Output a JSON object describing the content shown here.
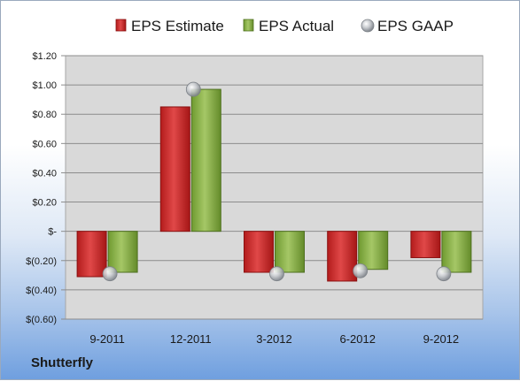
{
  "footer": {
    "company": "Shutterfly"
  },
  "chart_data": {
    "type": "bar",
    "title": "",
    "xlabel": "",
    "ylabel": "",
    "categories": [
      "9-2011",
      "12-2011",
      "3-2012",
      "6-2012",
      "9-2012"
    ],
    "series": [
      {
        "name": "EPS Estimate",
        "kind": "bar",
        "color": "#cc2a2a",
        "values": [
          -0.31,
          0.85,
          -0.28,
          -0.34,
          -0.18
        ]
      },
      {
        "name": "EPS Actual",
        "kind": "bar",
        "color": "#8cb04a",
        "values": [
          -0.28,
          0.97,
          -0.28,
          -0.26,
          -0.28
        ]
      },
      {
        "name": "EPS GAAP",
        "kind": "marker",
        "color": "#b9bcc0",
        "values": [
          -0.29,
          0.97,
          -0.29,
          -0.27,
          -0.29
        ]
      }
    ],
    "ylim": [
      -0.6,
      1.2
    ],
    "yticks": [
      -0.6,
      -0.4,
      -0.2,
      0,
      0.2,
      0.4,
      0.6,
      0.8,
      1.0,
      1.2
    ],
    "ytick_labels": [
      "$(0.60)",
      "$(0.40)",
      "$(0.20)",
      "$-",
      "$0.20",
      "$0.40",
      "$0.60",
      "$0.80",
      "$1.00",
      "$1.20"
    ],
    "grid": true,
    "legend": "top-center"
  }
}
